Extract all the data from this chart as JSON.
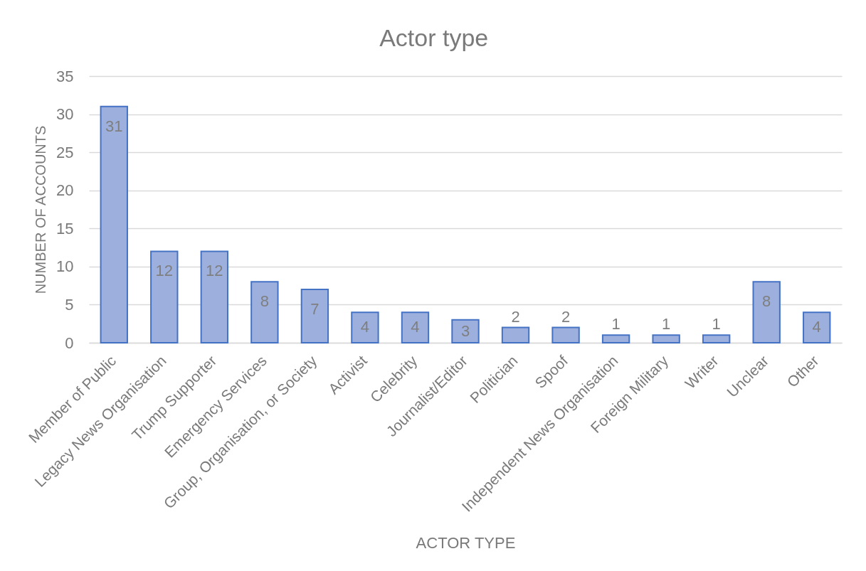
{
  "chart_data": {
    "type": "bar",
    "title": "Actor type",
    "xlabel": "ACTOR TYPE",
    "ylabel": "NUMBER OF ACCOUNTS",
    "categories": [
      "Member of Public",
      "Legacy News Organisation",
      "Trump Supporter",
      "Emergency Services",
      "Group, Organisation, or Society",
      "Activist",
      "Celebrity",
      "Journalist/Editor",
      "Politician",
      "Spoof",
      "Independent News Organisation",
      "Foreign Military",
      "Writer",
      "Unclear",
      "Other"
    ],
    "values": [
      31,
      12,
      12,
      8,
      7,
      4,
      4,
      3,
      2,
      2,
      1,
      1,
      1,
      8,
      4
    ],
    "color": "#9cafdd",
    "ylim": [
      0,
      35
    ],
    "yticks": [
      0,
      5,
      10,
      15,
      20,
      25,
      30,
      35
    ],
    "grid": "y",
    "data_labels": true
  }
}
